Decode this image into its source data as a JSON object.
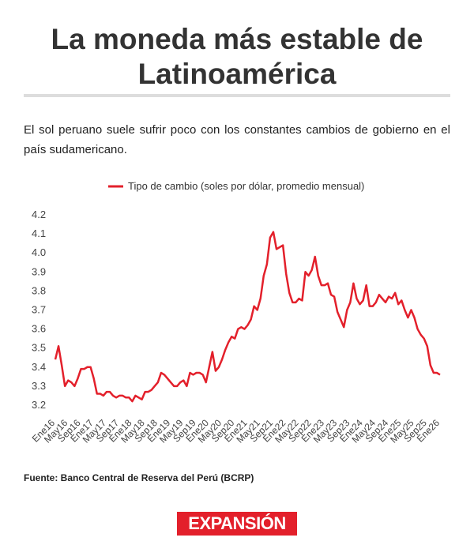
{
  "chart_data": {
    "type": "line",
    "title": "La moneda más estable de Latinoamérica",
    "subtitle": "El sol peruano suele sufrir poco con los constantes cambios de gobierno en el país sudamericano.",
    "source": "Fuente: Banco Central de Reserva del Perú (BCRP)",
    "logo": "EXPANSIÓN",
    "categories": [
      "Ene16",
      null,
      null,
      null,
      "May16",
      null,
      null,
      null,
      "Sep16",
      null,
      null,
      null,
      "Ene17",
      null,
      null,
      null,
      "May17",
      null,
      null,
      null,
      "Sep17",
      null,
      null,
      null,
      "Ene18",
      null,
      null,
      null,
      "May18",
      null,
      null,
      null,
      "Sep18",
      null,
      null,
      null,
      "Ene19",
      null,
      null,
      null,
      "May19",
      null,
      null,
      null,
      "Sep19",
      null,
      null,
      null,
      "Ene20",
      null,
      null,
      null,
      "May20",
      null,
      null,
      null,
      "Sep20",
      null,
      null,
      null,
      "Ene21",
      null,
      null,
      null,
      "May21",
      null,
      null,
      null,
      "Sep21",
      null,
      null,
      null,
      "Ene22",
      null,
      null,
      null,
      "May22",
      null,
      null,
      null,
      "Sep22",
      null,
      null,
      null,
      "Ene23",
      null,
      null,
      null,
      "May23",
      null,
      null,
      null,
      "Sep23",
      null,
      null,
      null,
      "Ene24",
      null,
      null,
      null,
      "May24",
      null,
      null,
      null,
      "Sep24",
      null,
      null,
      null,
      "Ene25",
      null,
      null,
      null,
      "May25",
      null,
      null,
      null,
      "Sep25",
      null,
      null,
      null,
      "Ene26"
    ],
    "series": [
      {
        "name": "Tipo de cambio (soles por dólar, promedio mensual)",
        "color": "#e3202b",
        "values": [
          3.44,
          3.51,
          3.41,
          3.3,
          3.33,
          3.32,
          3.3,
          3.34,
          3.39,
          3.39,
          3.4,
          3.4,
          3.34,
          3.26,
          3.26,
          3.25,
          3.27,
          3.27,
          3.25,
          3.24,
          3.25,
          3.25,
          3.24,
          3.24,
          3.22,
          3.25,
          3.24,
          3.23,
          3.27,
          3.27,
          3.28,
          3.3,
          3.32,
          3.37,
          3.36,
          3.34,
          3.32,
          3.3,
          3.3,
          3.32,
          3.33,
          3.3,
          3.37,
          3.36,
          3.37,
          3.37,
          3.36,
          3.32,
          3.4,
          3.48,
          3.38,
          3.4,
          3.44,
          3.49,
          3.53,
          3.56,
          3.55,
          3.6,
          3.61,
          3.6,
          3.62,
          3.65,
          3.72,
          3.7,
          3.76,
          3.88,
          3.94,
          4.08,
          4.11,
          4.02,
          4.03,
          4.04,
          3.89,
          3.79,
          3.74,
          3.74,
          3.76,
          3.75,
          3.9,
          3.88,
          3.91,
          3.98,
          3.88,
          3.83,
          3.83,
          3.84,
          3.78,
          3.77,
          3.69,
          3.65,
          3.61,
          3.7,
          3.74,
          3.84,
          3.76,
          3.73,
          3.75,
          3.83,
          3.72,
          3.72,
          3.74,
          3.78,
          3.76,
          3.74,
          3.77,
          3.76,
          3.79,
          3.73,
          3.75,
          3.7,
          3.66,
          3.7,
          3.66,
          3.6,
          3.57,
          3.55,
          3.51,
          3.41,
          3.37,
          3.37,
          3.36
        ]
      }
    ],
    "ylim": [
      3.15,
      4.2
    ],
    "yticks": [
      {
        "value": 3.2,
        "label": "3.2"
      },
      3.3,
      3.4,
      3.5,
      3.6,
      3.7,
      3.8,
      3.9,
      {
        "value": 4,
        "label": "4.0"
      },
      4.1,
      4.2
    ],
    "grid": false,
    "legend": "top"
  }
}
